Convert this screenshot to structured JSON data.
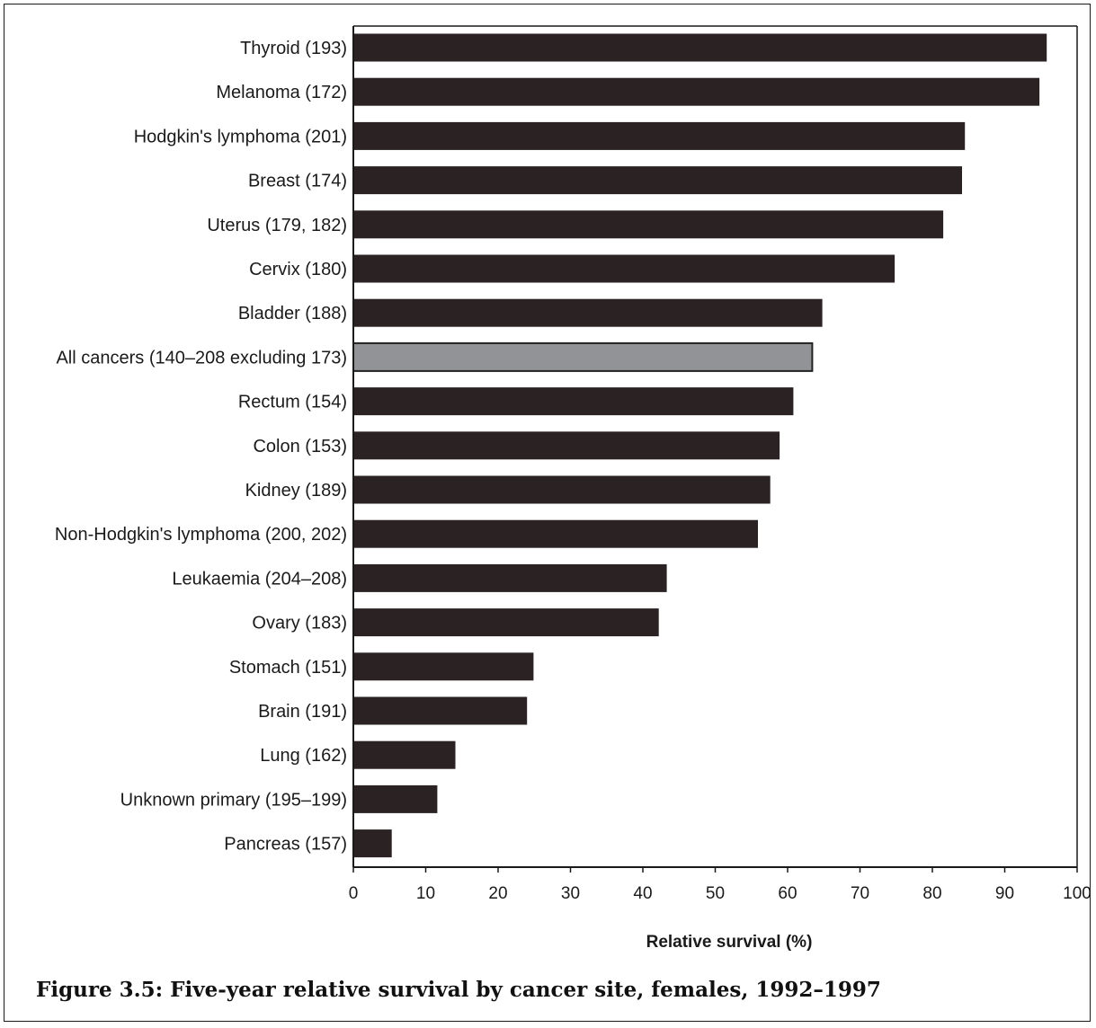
{
  "caption": "Figure 3.5: Five-year relative survival by cancer site, females, 1992–1997",
  "chart_data": {
    "type": "bar",
    "orientation": "horizontal",
    "categories": [
      "Thyroid (193)",
      "Melanoma (172)",
      "Hodgkin's lymphoma (201)",
      "Breast (174)",
      "Uterus (179, 182)",
      "Cervix (180)",
      "Bladder (188)",
      "All cancers (140–208 excluding 173)",
      "Rectum (154)",
      "Colon (153)",
      "Kidney (189)",
      "Non-Hodgkin's lymphoma (200, 202)",
      "Leukaemia (204–208)",
      "Ovary (183)",
      "Stomach (151)",
      "Brain (191)",
      "Lung (162)",
      "Unknown primary (195–199)",
      "Pancreas (157)"
    ],
    "values": [
      95.8,
      94.8,
      84.5,
      84.1,
      81.5,
      74.8,
      64.8,
      63.4,
      60.8,
      58.9,
      57.6,
      55.9,
      43.3,
      42.2,
      24.9,
      24.0,
      14.1,
      11.6,
      5.3
    ],
    "highlight_category": "All cancers (140–208 excluding 173)",
    "colors": {
      "bar": "#2a2223",
      "highlight": "#929396",
      "highlight_stroke": "#222222"
    },
    "xlabel": "Relative survival (%)",
    "xlim": [
      0,
      100
    ],
    "xticks": [
      "0",
      "10",
      "20",
      "30",
      "40",
      "50",
      "60",
      "70",
      "80",
      "90",
      "100"
    ],
    "grid": false,
    "legend": "none"
  }
}
